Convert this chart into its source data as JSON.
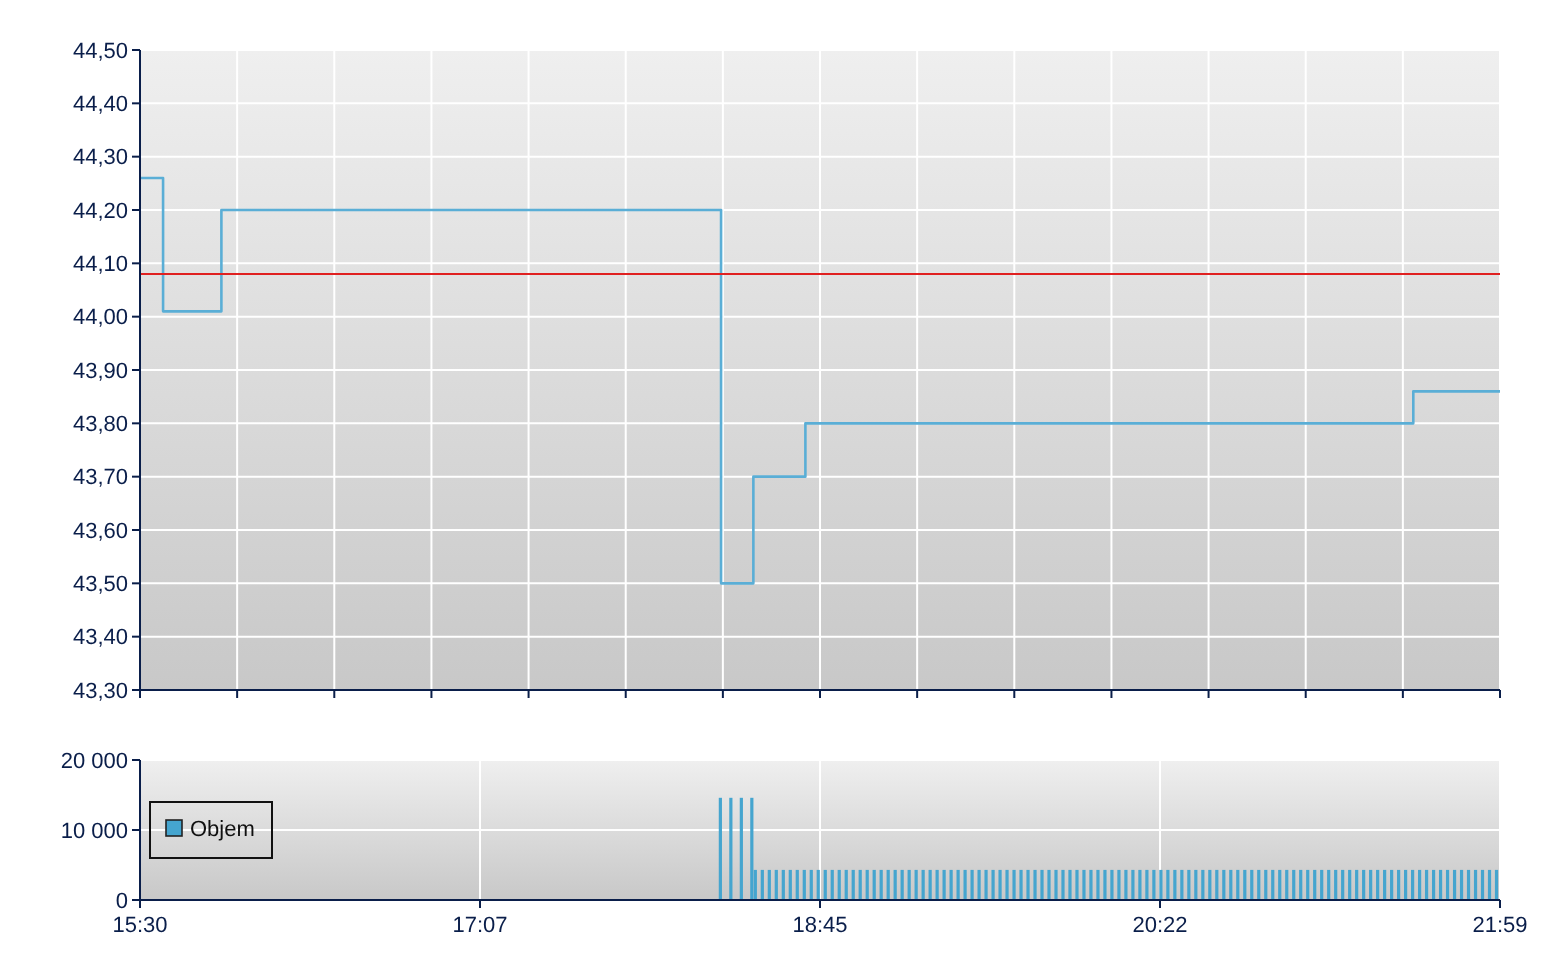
{
  "chart_data": [
    {
      "type": "step",
      "series": [
        {
          "color": "#5aaed6",
          "x": [
            15.5,
            15.61,
            15.888,
            18.217,
            18.27,
            18.424,
            18.672,
            21.57,
            21.9833
          ],
          "values": [
            44.26,
            44.01,
            44.2,
            44.2,
            43.5,
            43.7,
            43.8,
            43.86,
            43.86
          ]
        }
      ],
      "ref_lines": [
        {
          "axis": "y",
          "value": 44.08,
          "color": "#e02020"
        }
      ],
      "xlim": [
        15.5,
        21.9833
      ],
      "xticks": [
        {
          "value": 15.5,
          "label": null
        },
        {
          "value": 15.9631,
          "label": null
        },
        {
          "value": 16.4262,
          "label": null
        },
        {
          "value": 16.8893,
          "label": null
        },
        {
          "value": 17.3524,
          "label": null
        },
        {
          "value": 17.8155,
          "label": null
        },
        {
          "value": 18.2786,
          "label": null
        },
        {
          "value": 18.7417,
          "label": null
        },
        {
          "value": 19.2048,
          "label": null
        },
        {
          "value": 19.6679,
          "label": null
        },
        {
          "value": 20.131,
          "label": null
        },
        {
          "value": 20.594,
          "label": null
        },
        {
          "value": 21.0571,
          "label": null
        },
        {
          "value": 21.5202,
          "label": null
        },
        {
          "value": 21.9833,
          "label": null
        }
      ],
      "ylim": [
        43.3,
        44.5
      ],
      "yticks": [
        {
          "value": 43.3,
          "label": "43,30"
        },
        {
          "value": 43.4,
          "label": "43,40"
        },
        {
          "value": 43.5,
          "label": "43,50"
        },
        {
          "value": 43.6,
          "label": "43,60"
        },
        {
          "value": 43.7,
          "label": "43,70"
        },
        {
          "value": 43.8,
          "label": "43,80"
        },
        {
          "value": 43.9,
          "label": "43,90"
        },
        {
          "value": 44.0,
          "label": "44,00"
        },
        {
          "value": 44.1,
          "label": "44,10"
        },
        {
          "value": 44.2,
          "label": "44,20"
        },
        {
          "value": 44.3,
          "label": "44,30"
        },
        {
          "value": 44.4,
          "label": "44,40"
        },
        {
          "value": 44.5,
          "label": "44,50"
        }
      ],
      "grid": true,
      "tick_labels": "y"
    },
    {
      "type": "bar",
      "series": [
        {
          "name": "Objem",
          "color": "#45a5cf",
          "x": [
            18.2667,
            18.3167,
            18.3667,
            18.4167,
            18.4333,
            18.4667,
            18.5,
            18.5333,
            18.5667,
            18.6,
            18.6333,
            18.6667,
            18.7,
            18.7333,
            18.7667,
            18.8,
            18.8333,
            18.8667,
            18.9,
            18.9333,
            18.9667,
            19.0,
            19.0333,
            19.0667,
            19.1,
            19.1333,
            19.1667,
            19.2,
            19.2333,
            19.2667,
            19.3,
            19.3333,
            19.3667,
            19.4,
            19.4333,
            19.4667,
            19.5,
            19.5333,
            19.5667,
            19.6,
            19.6333,
            19.6667,
            19.7,
            19.7333,
            19.7667,
            19.8,
            19.8333,
            19.8667,
            19.9,
            19.9333,
            19.9667,
            20.0,
            20.0333,
            20.0667,
            20.1,
            20.1333,
            20.1667,
            20.2,
            20.2333,
            20.2667,
            20.3,
            20.3333,
            20.3667,
            20.4,
            20.4333,
            20.4667,
            20.5,
            20.5333,
            20.5667,
            20.6,
            20.6333,
            20.6667,
            20.7,
            20.7333,
            20.7667,
            20.8,
            20.8333,
            20.8667,
            20.9,
            20.9333,
            20.9667,
            21.0,
            21.0333,
            21.0667,
            21.1,
            21.1333,
            21.1667,
            21.2,
            21.2333,
            21.2667,
            21.3,
            21.3333,
            21.3667,
            21.4,
            21.4333,
            21.4667,
            21.5,
            21.5333,
            21.5667,
            21.6,
            21.6333,
            21.6667,
            21.7,
            21.7333,
            21.7667,
            21.8,
            21.8333,
            21.8667,
            21.9,
            21.9333,
            21.9667
          ],
          "values": [
            14600,
            14600,
            14600,
            14600,
            4300,
            4300,
            4300,
            4300,
            4300,
            4300,
            4300,
            4300,
            4300,
            4300,
            4300,
            4300,
            4300,
            4300,
            4300,
            4300,
            4300,
            4300,
            4300,
            4300,
            4300,
            4300,
            4300,
            4300,
            4300,
            4300,
            4300,
            4300,
            4300,
            4300,
            4300,
            4300,
            4300,
            4300,
            4300,
            4300,
            4300,
            4300,
            4300,
            4300,
            4300,
            4300,
            4300,
            4300,
            4300,
            4300,
            4300,
            4300,
            4300,
            4300,
            4300,
            4300,
            4300,
            4300,
            4300,
            4300,
            4300,
            4300,
            4300,
            4300,
            4300,
            4300,
            4300,
            4300,
            4300,
            4300,
            4300,
            4300,
            4300,
            4300,
            4300,
            4300,
            4300,
            4300,
            4300,
            4300,
            4300,
            4300,
            4300,
            4300,
            4300,
            4300,
            4300,
            4300,
            4300,
            4300,
            4300,
            4300,
            4300,
            4300,
            4300,
            4300,
            4300,
            4300,
            4300,
            4300,
            4300,
            4300,
            4300,
            4300,
            4300,
            4300,
            4300,
            4300,
            4300,
            4300,
            4300
          ]
        }
      ],
      "xlim": [
        15.5,
        21.9833
      ],
      "xticks": [
        {
          "value": 15.5,
          "label": "15:30"
        },
        {
          "value": 17.1208,
          "label": "17:07"
        },
        {
          "value": 18.7417,
          "label": "18:45"
        },
        {
          "value": 20.3625,
          "label": "20:22"
        },
        {
          "value": 21.9833,
          "label": "21:59"
        }
      ],
      "ylim": [
        0,
        20000
      ],
      "yticks": [
        0,
        {
          "value": 10000,
          "label": "10 000"
        },
        {
          "value": 20000,
          "label": "20 000"
        }
      ],
      "grid": true,
      "legend": "left"
    }
  ]
}
